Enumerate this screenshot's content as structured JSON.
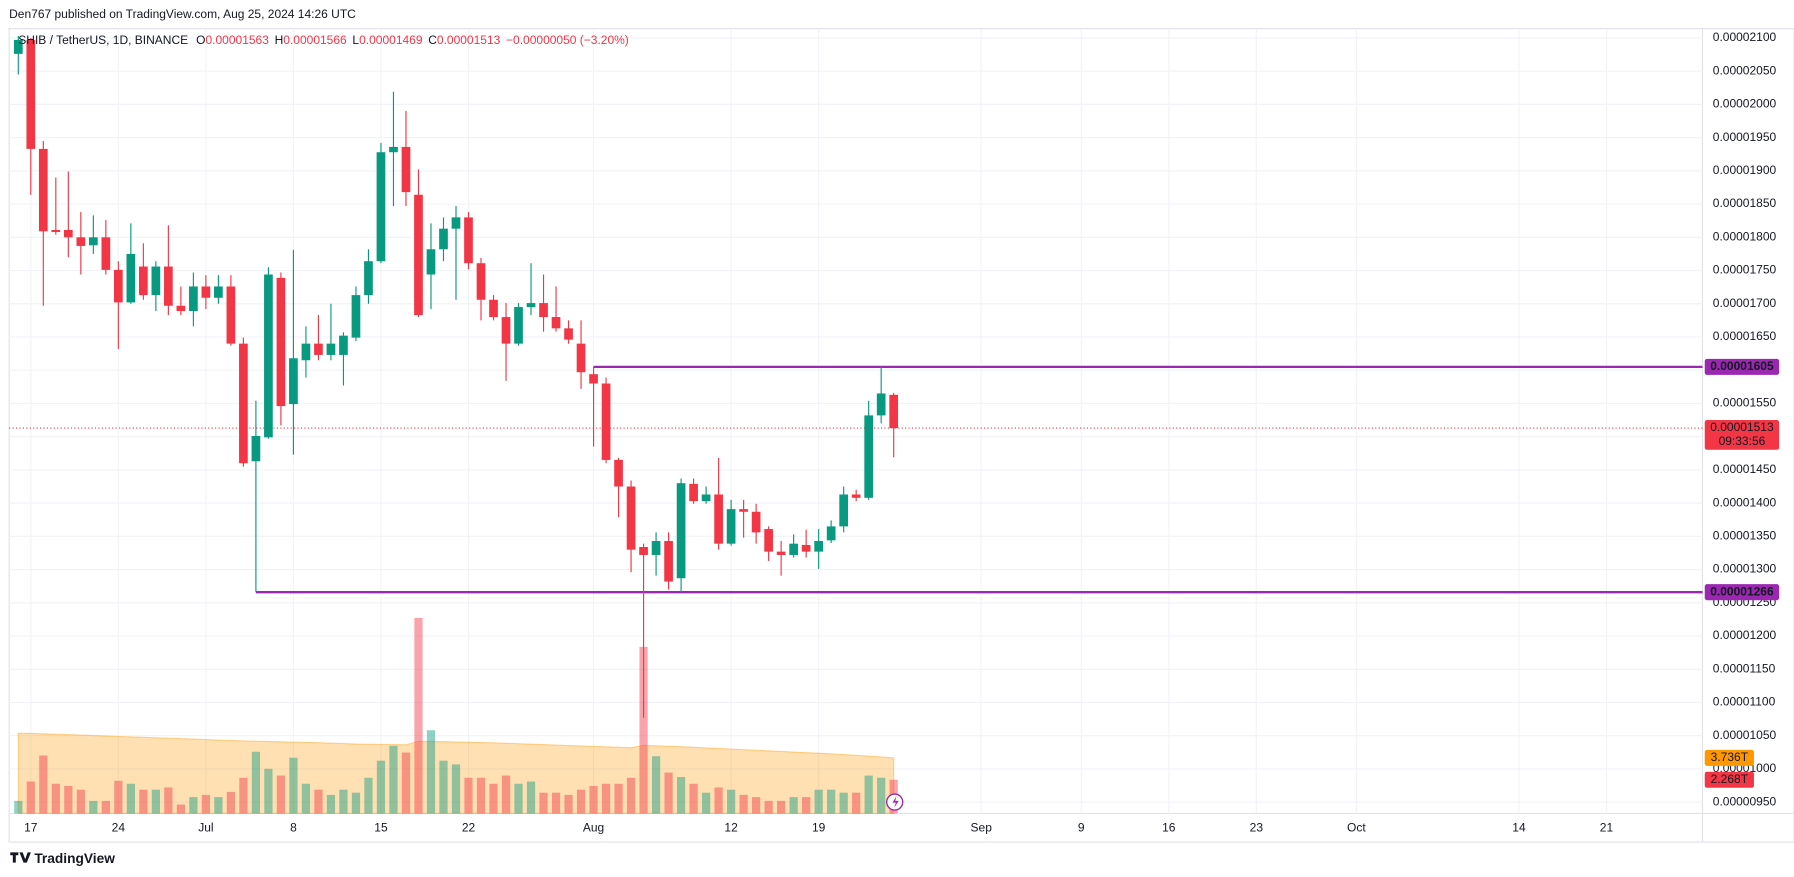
{
  "chart_data": {
    "type": "candlestick",
    "header": {
      "attribution": "Den767 published on TradingView.com, Aug 25, 2024 14:26 UTC",
      "change": "−0.00000050 (−3.20%)",
      "countdown": "09:33:56",
      "brand": "TradingView"
    },
    "title": "SHIB / TetherUS, 1D, BINANCE",
    "ohlc_keys": [
      "O",
      "H",
      "L",
      "C"
    ],
    "up_color": "#089981",
    "down_color": "#f23645",
    "level_color": "#9c27b0",
    "grid": true,
    "ylim": [
      9.33e-06,
      2.114e-05
    ],
    "yticks": [
      {
        "value": 9.5e-06,
        "label": "0.00000950"
      },
      {
        "value": 1e-05,
        "label": "0.00001000"
      },
      {
        "value": 1.05e-05,
        "label": "0.00001050"
      },
      {
        "value": 1.1e-05,
        "label": "0.00001100"
      },
      {
        "value": 1.15e-05,
        "label": "0.00001150"
      },
      {
        "value": 1.2e-05,
        "label": "0.00001200"
      },
      {
        "value": 1.25e-05,
        "label": "0.00001250"
      },
      {
        "value": 1.3e-05,
        "label": "0.00001300"
      },
      {
        "value": 1.35e-05,
        "label": "0.00001350"
      },
      {
        "value": 1.4e-05,
        "label": "0.00001400"
      },
      {
        "value": 1.45e-05,
        "label": "0.00001450"
      },
      {
        "value": 1.5e-05,
        "label": "0.00001500"
      },
      {
        "value": 1.55e-05,
        "label": "0.00001550"
      },
      {
        "value": 1.6e-05,
        "label": "0.00001600"
      },
      {
        "value": 1.65e-05,
        "label": "0.00001650"
      },
      {
        "value": 1.7e-05,
        "label": "0.00001700"
      },
      {
        "value": 1.75e-05,
        "label": "0.00001750"
      },
      {
        "value": 1.8e-05,
        "label": "0.00001800"
      },
      {
        "value": 1.85e-05,
        "label": "0.00001850"
      },
      {
        "value": 1.9e-05,
        "label": "0.00001900"
      },
      {
        "value": 1.95e-05,
        "label": "0.00001950"
      },
      {
        "value": 2e-05,
        "label": "0.00002000"
      },
      {
        "value": 2.05e-05,
        "label": "0.00002050"
      },
      {
        "value": 2.1e-05,
        "label": "0.00002100"
      }
    ],
    "levels": [
      1.605e-05,
      1.266e-05
    ],
    "categories": [
      null,
      "17",
      null,
      null,
      null,
      null,
      null,
      null,
      "24",
      null,
      null,
      null,
      null,
      null,
      null,
      "Jul",
      null,
      null,
      null,
      null,
      null,
      null,
      "8",
      null,
      null,
      null,
      null,
      null,
      null,
      "15",
      null,
      null,
      null,
      null,
      null,
      null,
      "22",
      null,
      null,
      null,
      null,
      null,
      null,
      null,
      null,
      null,
      "Aug",
      null,
      null,
      null,
      null,
      null,
      null,
      null,
      null,
      null,
      null,
      "12",
      null,
      null,
      null,
      null,
      null,
      null,
      "19",
      null,
      null,
      null,
      null,
      null,
      null,
      null,
      null,
      null,
      null,
      null,
      null,
      "Sep",
      null,
      null,
      null,
      null,
      null,
      null,
      null,
      "9",
      null,
      null,
      null,
      null,
      null,
      null,
      "16",
      null,
      null,
      null,
      null,
      null,
      null,
      "23",
      null,
      null,
      null,
      null,
      null,
      null,
      null,
      "Oct",
      null,
      null,
      null,
      null,
      null,
      null,
      null,
      null,
      null,
      null,
      null,
      null,
      "14",
      null,
      null,
      null,
      null,
      null,
      null,
      "21",
      null,
      null,
      null,
      null,
      null,
      null,
      null
    ],
    "open": [
      2.076e-05,
      2.097e-05,
      1.933e-05,
      1.811e-05,
      1.811e-05,
      1.8e-05,
      1.788e-05,
      1.8e-05,
      1.751e-05,
      1.702e-05,
      1.756e-05,
      1.713e-05,
      1.756e-05,
      1.697e-05,
      1.689e-05,
      1.726e-05,
      1.709e-05,
      1.726e-05,
      1.64e-05,
      1.463e-05,
      1.499e-05,
      1.739e-05,
      1.549e-05,
      1.615e-05,
      1.64e-05,
      1.623e-05,
      1.623e-05,
      1.649e-05,
      1.713e-05,
      1.764e-05,
      1.928e-05,
      1.936e-05,
      1.864e-05,
      1.744e-05,
      1.782e-05,
      1.813e-05,
      1.83e-05,
      1.761e-05,
      1.706e-05,
      1.68e-05,
      1.64e-05,
      1.695e-05,
      1.701e-05,
      1.68e-05,
      1.663e-05,
      1.64e-05,
      1.594e-05,
      1.58e-05,
      1.465e-05,
      1.425e-05,
      1.334e-05,
      1.322e-05,
      1.343e-05,
      1.287e-05,
      1.429e-05,
      1.403e-05,
      1.413e-05,
      1.339e-05,
      1.391e-05,
      1.387e-05,
      1.361e-05,
      1.327e-05,
      1.322e-05,
      1.337e-05,
      1.327e-05,
      1.344e-05,
      1.365e-05,
      1.413e-05,
      1.408e-05,
      1.532e-05,
      1.563e-05,
      null,
      null,
      null,
      null,
      null,
      null,
      null,
      null,
      null,
      null,
      null,
      null,
      null,
      null,
      null,
      null,
      null,
      null,
      null,
      null,
      null,
      null,
      null,
      null,
      null,
      null,
      null,
      null,
      null,
      null,
      null,
      null,
      null,
      null,
      null,
      null,
      null,
      null,
      null,
      null,
      null,
      null,
      null,
      null,
      null,
      null,
      null,
      null,
      null,
      null,
      null,
      null,
      null,
      null,
      null,
      null,
      null,
      null,
      null,
      null,
      null,
      null,
      null,
      null
    ],
    "high": [
      2.103e-05,
      2.1e-05,
      1.945e-05,
      1.89e-05,
      1.899e-05,
      1.838e-05,
      1.833e-05,
      1.826e-05,
      1.764e-05,
      1.821e-05,
      1.791e-05,
      1.764e-05,
      1.818e-05,
      1.726e-05,
      1.747e-05,
      1.743e-05,
      1.743e-05,
      1.743e-05,
      1.649e-05,
      1.554e-05,
      1.755e-05,
      1.747e-05,
      1.781e-05,
      1.666e-05,
      1.683e-05,
      1.7e-05,
      1.657e-05,
      1.726e-05,
      1.782e-05,
      1.942e-05,
      2.019e-05,
      1.99e-05,
      1.902e-05,
      1.821e-05,
      1.83e-05,
      1.847e-05,
      1.838e-05,
      1.769e-05,
      1.713e-05,
      1.701e-05,
      1.701e-05,
      1.761e-05,
      1.744e-05,
      1.726e-05,
      1.675e-05,
      1.675e-05,
      1.605e-05,
      1.589e-05,
      1.468e-05,
      1.434e-05,
      1.339e-05,
      1.356e-05,
      1.356e-05,
      1.437e-05,
      1.437e-05,
      1.425e-05,
      1.468e-05,
      1.405e-05,
      1.405e-05,
      1.399e-05,
      1.365e-05,
      1.343e-05,
      1.353e-05,
      1.36e-05,
      1.361e-05,
      1.374e-05,
      1.425e-05,
      1.42e-05,
      1.554e-05,
      1.605e-05,
      1.566e-05,
      null,
      null,
      null,
      null,
      null,
      null,
      null,
      null,
      null,
      null,
      null,
      null,
      null,
      null,
      null,
      null,
      null,
      null,
      null,
      null,
      null,
      null,
      null,
      null,
      null,
      null,
      null,
      null,
      null,
      null,
      null,
      null,
      null,
      null,
      null,
      null,
      null,
      null,
      null,
      null,
      null,
      null,
      null,
      null,
      null,
      null,
      null,
      null,
      null,
      null,
      null,
      null,
      null,
      null,
      null,
      null,
      null,
      null,
      null,
      null,
      null,
      null,
      null,
      null
    ],
    "low": [
      2.045e-05,
      1.864e-05,
      1.697e-05,
      1.804e-05,
      1.77e-05,
      1.744e-05,
      1.775e-05,
      1.744e-05,
      1.632e-05,
      1.7e-05,
      1.706e-05,
      1.689e-05,
      1.683e-05,
      1.683e-05,
      1.666e-05,
      1.692e-05,
      1.7e-05,
      1.637e-05,
      1.455e-05,
      1.266e-05,
      1.497e-05,
      1.517e-05,
      1.473e-05,
      1.589e-05,
      1.615e-05,
      1.615e-05,
      1.577e-05,
      1.644e-05,
      1.7e-05,
      1.761e-05,
      1.847e-05,
      1.847e-05,
      1.68e-05,
      1.692e-05,
      1.764e-05,
      1.706e-05,
      1.752e-05,
      1.675e-05,
      1.675e-05,
      1.584e-05,
      1.637e-05,
      1.683e-05,
      1.658e-05,
      1.658e-05,
      1.64e-05,
      1.572e-05,
      1.485e-05,
      1.46e-05,
      1.379e-05,
      1.296e-05,
      1.077e-05,
      1.291e-05,
      1.27e-05,
      1.266e-05,
      1.399e-05,
      1.399e-05,
      1.33e-05,
      1.336e-05,
      1.348e-05,
      1.339e-05,
      1.313e-05,
      1.291e-05,
      1.318e-05,
      1.318e-05,
      1.301e-05,
      1.34e-05,
      1.356e-05,
      1.403e-05,
      1.405e-05,
      1.52e-05,
      1.469e-05,
      null,
      null,
      null,
      null,
      null,
      null,
      null,
      null,
      null,
      null,
      null,
      null,
      null,
      null,
      null,
      null,
      null,
      null,
      null,
      null,
      null,
      null,
      null,
      null,
      null,
      null,
      null,
      null,
      null,
      null,
      null,
      null,
      null,
      null,
      null,
      null,
      null,
      null,
      null,
      null,
      null,
      null,
      null,
      null,
      null,
      null,
      null,
      null,
      null,
      null,
      null,
      null,
      null,
      null,
      null,
      null,
      null,
      null,
      null,
      null,
      null,
      null,
      null,
      null
    ],
    "close": [
      2.097e-05,
      1.933e-05,
      1.809e-05,
      1.808e-05,
      1.8e-05,
      1.787e-05,
      1.8e-05,
      1.751e-05,
      1.702e-05,
      1.775e-05,
      1.713e-05,
      1.756e-05,
      1.697e-05,
      1.689e-05,
      1.726e-05,
      1.709e-05,
      1.726e-05,
      1.64e-05,
      1.46e-05,
      1.501e-05,
      1.744e-05,
      1.546e-05,
      1.618e-05,
      1.64e-05,
      1.623e-05,
      1.64e-05,
      1.652e-05,
      1.713e-05,
      1.764e-05,
      1.928e-05,
      1.936e-05,
      1.868e-05,
      1.683e-05,
      1.782e-05,
      1.813e-05,
      1.83e-05,
      1.761e-05,
      1.706e-05,
      1.68e-05,
      1.64e-05,
      1.695e-05,
      1.701e-05,
      1.68e-05,
      1.663e-05,
      1.646e-05,
      1.597e-05,
      1.58e-05,
      1.465e-05,
      1.425e-05,
      1.33e-05,
      1.322e-05,
      1.343e-05,
      1.282e-05,
      1.43e-05,
      1.403e-05,
      1.413e-05,
      1.339e-05,
      1.391e-05,
      1.387e-05,
      1.356e-05,
      1.327e-05,
      1.322e-05,
      1.339e-05,
      1.327e-05,
      1.343e-05,
      1.365e-05,
      1.413e-05,
      1.408e-05,
      1.532e-05,
      1.565e-05,
      1.513e-05,
      null,
      null,
      null,
      null,
      null,
      null,
      null,
      null,
      null,
      null,
      null,
      null,
      null,
      null,
      null,
      null,
      null,
      null,
      null,
      null,
      null,
      null,
      null,
      null,
      null,
      null,
      null,
      null,
      null,
      null,
      null,
      null,
      null,
      null,
      null,
      null,
      null,
      null,
      null,
      null,
      null,
      null,
      null,
      null,
      null,
      null,
      null,
      null,
      null,
      null,
      null,
      null,
      null,
      null,
      null,
      null,
      null,
      null,
      null,
      null,
      null,
      null,
      null,
      null
    ],
    "volume": {
      "color": "#089981",
      "values": [
        0.85,
        2.15,
        3.9,
        2.0,
        1.85,
        1.6,
        0.85,
        0.85,
        2.2,
        2.0,
        1.6,
        1.6,
        1.75,
        0.6,
        1.1,
        1.25,
        1.1,
        1.45,
        2.4,
        4.15,
        3.0,
        2.55,
        3.75,
        2.0,
        1.6,
        1.25,
        1.6,
        1.4,
        2.4,
        3.55,
        4.55,
        4.1,
        13.15,
        5.6,
        3.55,
        3.3,
        2.4,
        2.4,
        2.0,
        2.55,
        2.0,
        2.15,
        1.4,
        1.4,
        1.25,
        1.6,
        1.85,
        2.0,
        2.0,
        2.4,
        11.2,
        3.85,
        2.75,
        2.45,
        2.0,
        1.4,
        1.75,
        1.6,
        1.25,
        1.1,
        0.85,
        0.85,
        1.1,
        1.1,
        1.6,
        1.6,
        1.4,
        1.4,
        2.55,
        2.4,
        2.268,
        null,
        null,
        null,
        null,
        null,
        null,
        null,
        null,
        null,
        null,
        null,
        null,
        null,
        null,
        null,
        null,
        null,
        null,
        null,
        null,
        null,
        null,
        null,
        null,
        null,
        null,
        null,
        null,
        null,
        null,
        null,
        null,
        null,
        null,
        null,
        null,
        null,
        null,
        null,
        null,
        null,
        null,
        null,
        null,
        null,
        null,
        null,
        null,
        null,
        null,
        null,
        null,
        null,
        null,
        null,
        null,
        null,
        null,
        null,
        null,
        null,
        null,
        null,
        null
      ],
      "value_labels": [
        null,
        null,
        null,
        null,
        null,
        null,
        null,
        null,
        null,
        null,
        null,
        null,
        null,
        null,
        null,
        null,
        null,
        null,
        null,
        null,
        null,
        null,
        null,
        null,
        null,
        null,
        null,
        null,
        null,
        null,
        null,
        null,
        null,
        null,
        null,
        null,
        null,
        null,
        null,
        null,
        null,
        null,
        null,
        null,
        null,
        null,
        null,
        null,
        null,
        null,
        null,
        null,
        null,
        null,
        null,
        null,
        null,
        null,
        null,
        null,
        null,
        null,
        null,
        null,
        null,
        null,
        null,
        null,
        null,
        null,
        "2.268T",
        null,
        null,
        null,
        null,
        null,
        null,
        null,
        null,
        null,
        null,
        null,
        null,
        null,
        null,
        null,
        null,
        null,
        null,
        null,
        null,
        null,
        null,
        null,
        null,
        null,
        null,
        null,
        null,
        null,
        null,
        null,
        null,
        null,
        null,
        null,
        null,
        null,
        null,
        null,
        null,
        null,
        null,
        null,
        null,
        null,
        null,
        null,
        null,
        null,
        null,
        null,
        null,
        null,
        null,
        null,
        null,
        null,
        null,
        null,
        null,
        null,
        null,
        null,
        null
      ]
    },
    "volume_ma": {
      "color": "#ff9800",
      "values": [
        5.4,
        5.38,
        5.36,
        5.33,
        5.3,
        5.27,
        5.24,
        5.21,
        5.18,
        5.15,
        5.12,
        5.09,
        5.06,
        5.03,
        5.0,
        4.97,
        4.94,
        4.91,
        4.88,
        4.86,
        4.84,
        4.82,
        4.8,
        4.78,
        4.76,
        4.73,
        4.7,
        4.67,
        4.65,
        4.64,
        4.63,
        4.62,
        4.85,
        4.84,
        4.83,
        4.81,
        4.79,
        4.77,
        4.75,
        4.72,
        4.69,
        4.66,
        4.63,
        4.6,
        4.57,
        4.54,
        4.51,
        4.48,
        4.45,
        4.42,
        4.58,
        4.55,
        4.52,
        4.49,
        4.45,
        4.41,
        4.37,
        4.33,
        4.29,
        4.25,
        4.21,
        4.17,
        4.13,
        4.09,
        4.05,
        4.01,
        3.96,
        3.91,
        3.86,
        3.8,
        3.736,
        null,
        null,
        null,
        null,
        null,
        null,
        null,
        null,
        null,
        null,
        null,
        null,
        null,
        null,
        null,
        null,
        null,
        null,
        null,
        null,
        null,
        null,
        null,
        null,
        null,
        null,
        null,
        null,
        null,
        null,
        null,
        null,
        null,
        null,
        null,
        null,
        null,
        null,
        null,
        null,
        null,
        null,
        null,
        null,
        null,
        null,
        null,
        null,
        null,
        null,
        null,
        null,
        null,
        null,
        null,
        null,
        null,
        null,
        null,
        null,
        null,
        null,
        null,
        null
      ],
      "value_labels": [
        null,
        null,
        null,
        null,
        null,
        null,
        null,
        null,
        null,
        null,
        null,
        null,
        null,
        null,
        null,
        null,
        null,
        null,
        null,
        null,
        null,
        null,
        null,
        null,
        null,
        null,
        null,
        null,
        null,
        null,
        null,
        null,
        null,
        null,
        null,
        null,
        null,
        null,
        null,
        null,
        null,
        null,
        null,
        null,
        null,
        null,
        null,
        null,
        null,
        null,
        null,
        null,
        null,
        null,
        null,
        null,
        null,
        null,
        null,
        null,
        null,
        null,
        null,
        null,
        null,
        null,
        null,
        null,
        null,
        null,
        "3.736T",
        null,
        null,
        null,
        null,
        null,
        null,
        null,
        null,
        null,
        null,
        null,
        null,
        null,
        null,
        null,
        null,
        null,
        null,
        null,
        null,
        null,
        null,
        null,
        null,
        null,
        null,
        null,
        null,
        null,
        null,
        null,
        null,
        null,
        null,
        null,
        null,
        null,
        null,
        null,
        null,
        null,
        null,
        null,
        null,
        null,
        null,
        null,
        null,
        null,
        null,
        null,
        null,
        null,
        null,
        null,
        null,
        null,
        null,
        null,
        null,
        null,
        null,
        null,
        null
      ]
    }
  }
}
